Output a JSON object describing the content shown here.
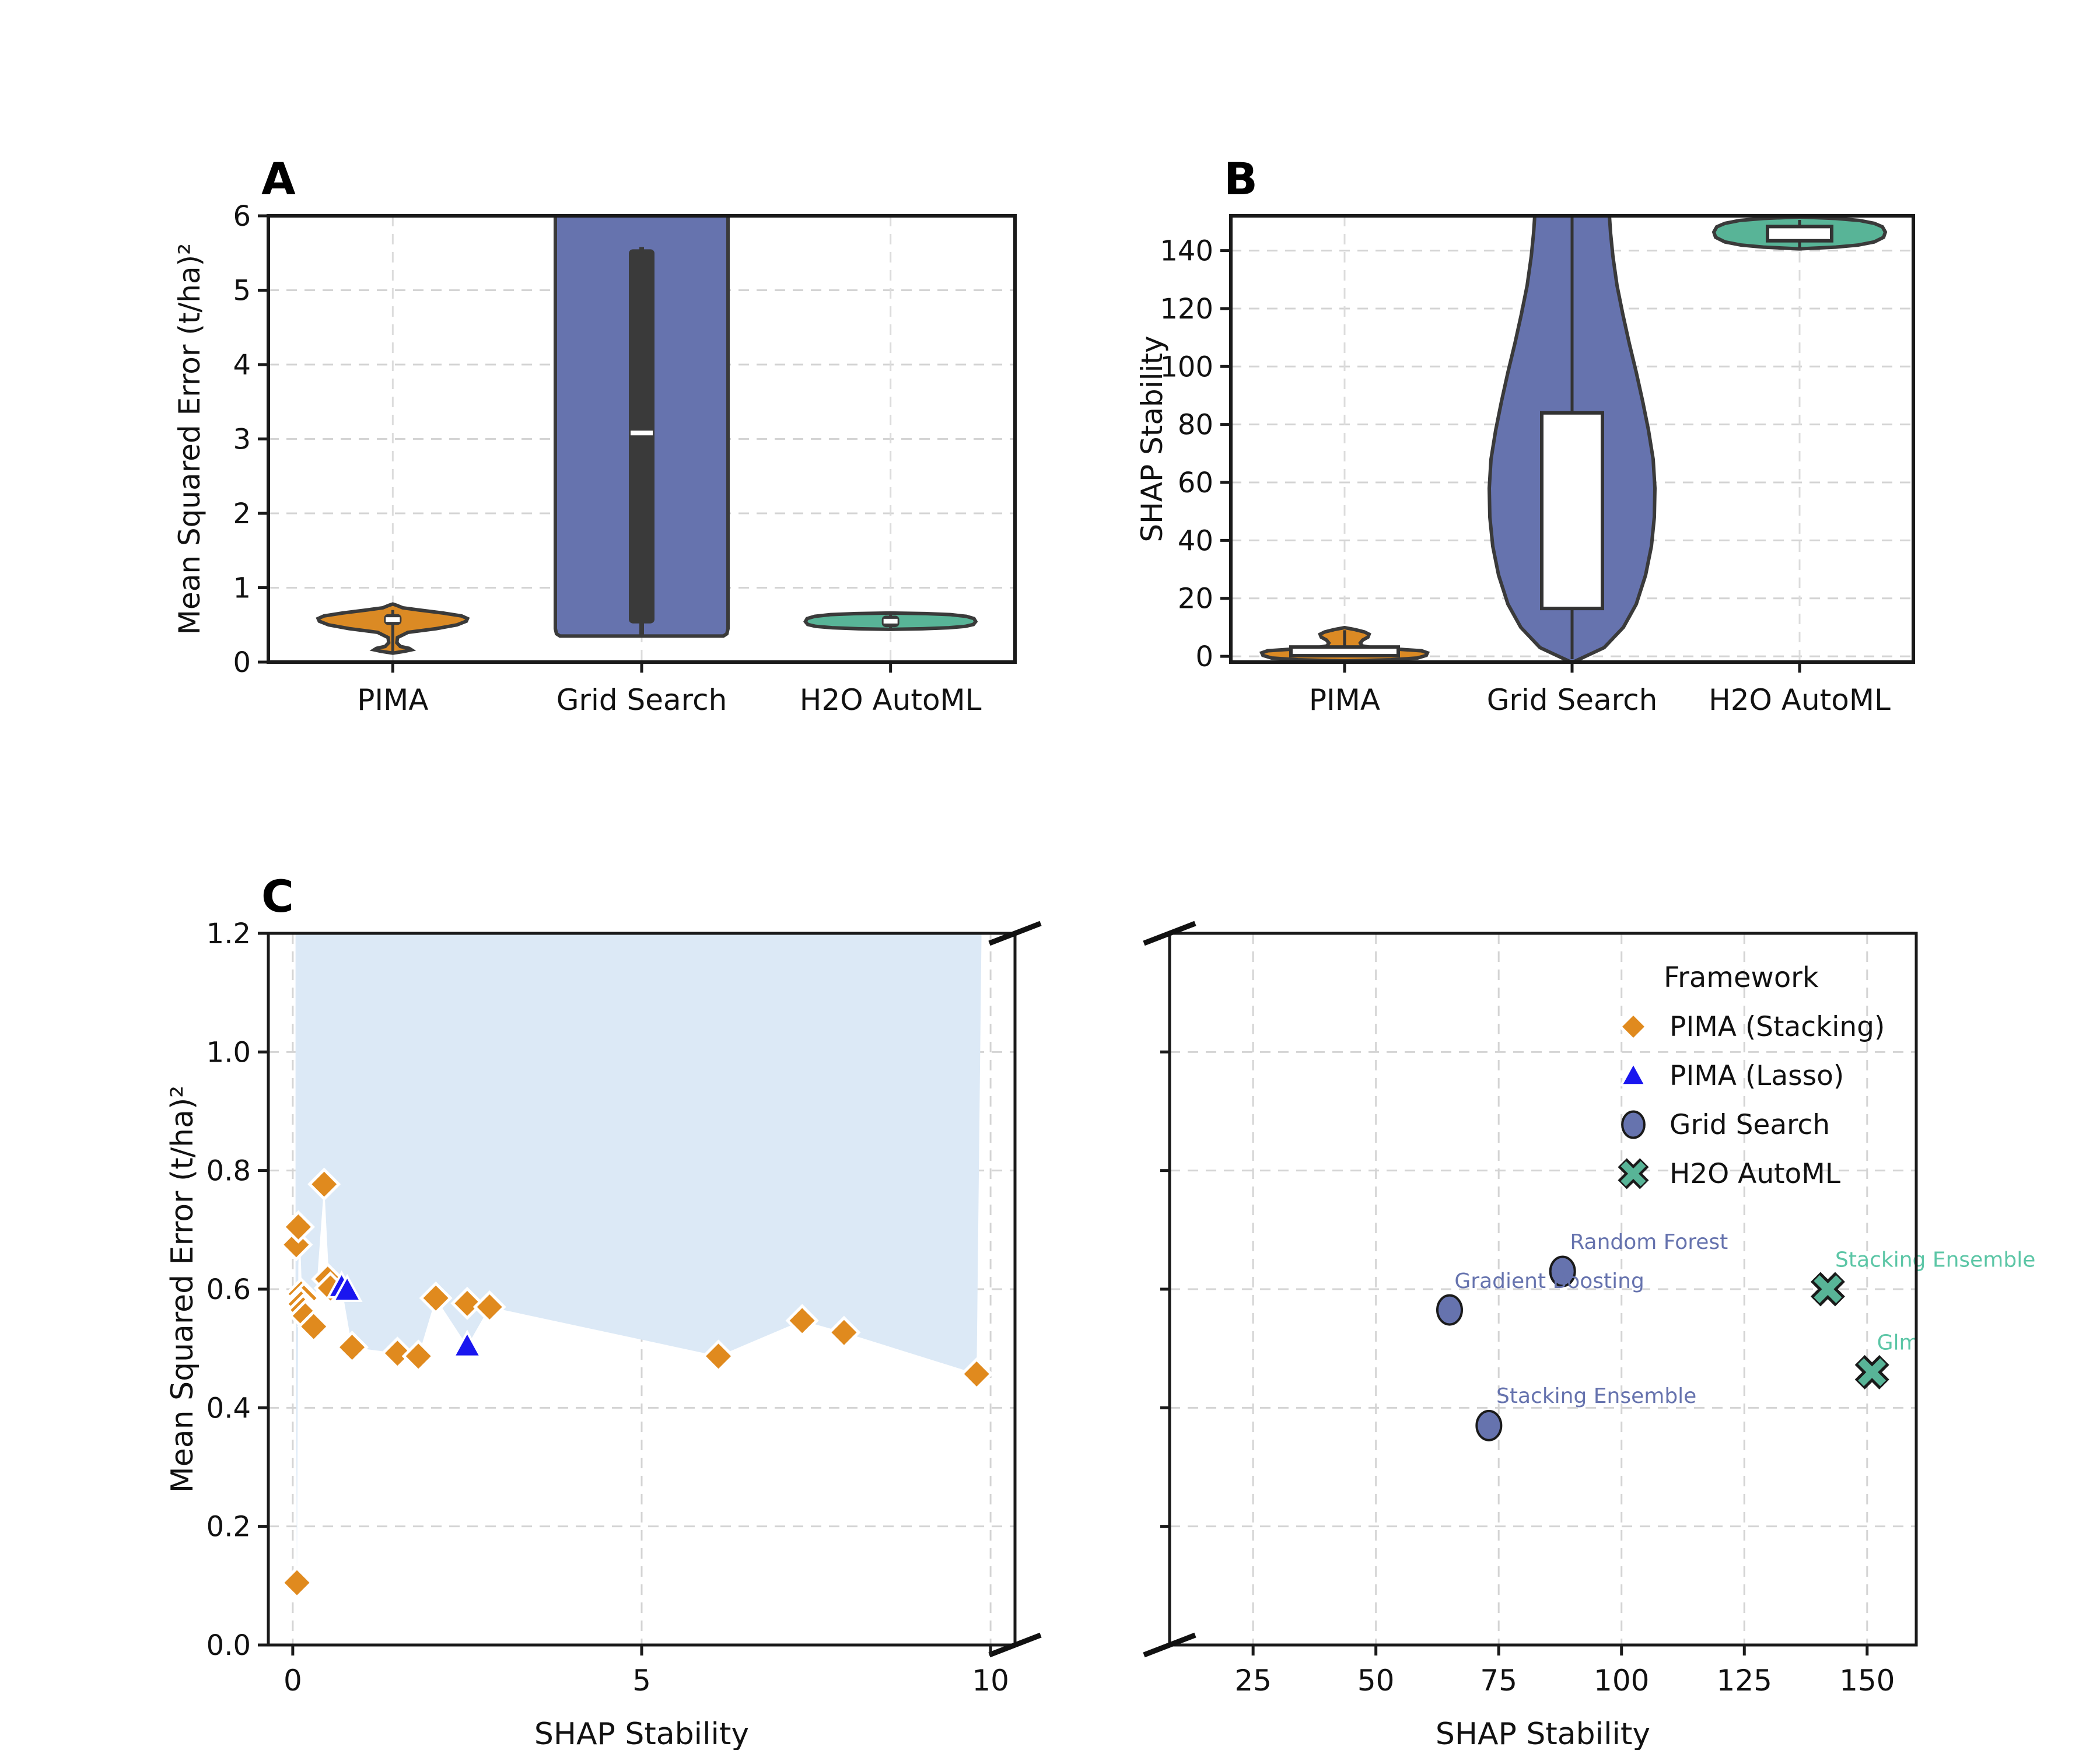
{
  "panels": {
    "a_label": "A",
    "b_label": "B",
    "c_label": "C"
  },
  "colors": {
    "orange": "#DB8A24",
    "purple": "#6673AE",
    "teal": "#58B497",
    "teal_text": "#5CC6A6",
    "blue": "#1A16EF",
    "band": "#DCE9F6",
    "violin_edge": "#3a3a3a",
    "spine": "#1a1a1a",
    "grid": "#d4d4d4",
    "text": "#111111"
  },
  "chart_data": [
    {
      "id": "A",
      "type": "violin",
      "panel_label": "A",
      "ylabel": "Mean Squared Error (t/ha)²",
      "ylim": [
        0,
        6
      ],
      "yticks": [
        0,
        1,
        2,
        3,
        4,
        5,
        6
      ],
      "categories": [
        "PIMA",
        "Grid Search",
        "H2O AutoML"
      ],
      "violins": [
        {
          "key": "pima",
          "color": "#DB8A24",
          "inner": "dark",
          "box_halfwidth": 15,
          "whisker_width": 5,
          "summary": {
            "min": 0.12,
            "max": 0.78,
            "whisker_low": 0.14,
            "q1": 0.5,
            "median": 0.572,
            "q3": 0.645,
            "whisker_high": 0.7
          },
          "profile": [
            [
              0.12,
              0
            ],
            [
              0.145,
              20
            ],
            [
              0.165,
              32
            ],
            [
              0.185,
              28
            ],
            [
              0.21,
              13
            ],
            [
              0.26,
              7
            ],
            [
              0.33,
              8
            ],
            [
              0.4,
              26
            ],
            [
              0.45,
              75
            ],
            [
              0.5,
              110
            ],
            [
              0.55,
              126
            ],
            [
              0.585,
              128
            ],
            [
              0.62,
              118
            ],
            [
              0.66,
              86
            ],
            [
              0.7,
              45
            ],
            [
              0.73,
              17
            ],
            [
              0.765,
              6
            ],
            [
              0.78,
              0
            ]
          ]
        },
        {
          "key": "grid-search",
          "color": "#6673AE",
          "inner": "dark",
          "box_halfwidth": 22,
          "whisker_width": 8,
          "summary": {
            "min": 0.35,
            "max": 6.0,
            "whisker_low": 0.36,
            "q1": 0.52,
            "median": 3.08,
            "q3": 5.55,
            "whisker_high": 5.58
          },
          "profile": [
            [
              0.35,
              140
            ],
            [
              0.38,
              146
            ],
            [
              0.45,
              148
            ],
            [
              1,
              148
            ],
            [
              2,
              148
            ],
            [
              3,
              148
            ],
            [
              4,
              148
            ],
            [
              5,
              148
            ],
            [
              6,
              148
            ]
          ]
        },
        {
          "key": "h2o-automl",
          "color": "#58B497",
          "inner": "dark",
          "box_halfwidth": 15,
          "whisker_width": 5,
          "summary": {
            "min": 0.44,
            "max": 0.66,
            "whisker_low": 0.46,
            "q1": 0.47,
            "median": 0.55,
            "q3": 0.625,
            "whisker_high": 0.64
          },
          "profile": [
            [
              0.44,
              0
            ],
            [
              0.448,
              55
            ],
            [
              0.462,
              100
            ],
            [
              0.48,
              128
            ],
            [
              0.505,
              142
            ],
            [
              0.545,
              146
            ],
            [
              0.585,
              143
            ],
            [
              0.615,
              130
            ],
            [
              0.638,
              103
            ],
            [
              0.652,
              60
            ],
            [
              0.66,
              0
            ]
          ]
        }
      ]
    },
    {
      "id": "B",
      "type": "violin",
      "panel_label": "B",
      "ylabel": "SHAP Stability",
      "ylim": [
        -2,
        152
      ],
      "yticks": [
        0,
        20,
        40,
        60,
        80,
        100,
        120,
        140
      ],
      "categories": [
        "PIMA",
        "Grid Search",
        "H2O AutoML"
      ],
      "violins": [
        {
          "key": "pima",
          "color": "#DB8A24",
          "inner": "white",
          "box_halfwidth": 92,
          "summary": {
            "min": -1.5,
            "max": 10,
            "whisker_low": 0.0,
            "q1": 0.2,
            "median": 1.6,
            "q3": 3.2,
            "whisker_high": 9.0
          },
          "profile": [
            [
              -1.6,
              0
            ],
            [
              -1.2,
              80
            ],
            [
              -0.6,
              125
            ],
            [
              0.3,
              140
            ],
            [
              1.2,
              142
            ],
            [
              1.9,
              132
            ],
            [
              2.4,
              95
            ],
            [
              2.9,
              50
            ],
            [
              3.6,
              30
            ],
            [
              4.6,
              27
            ],
            [
              5.6,
              31
            ],
            [
              6.6,
              40
            ],
            [
              7.6,
              42
            ],
            [
              8.4,
              34
            ],
            [
              9.2,
              18
            ],
            [
              9.9,
              0
            ]
          ]
        },
        {
          "key": "grid-search",
          "color": "#6673AE",
          "inner": "white",
          "box_halfwidth": 52,
          "summary": {
            "min": -1,
            "max": 152,
            "whisker_low": -1,
            "q1": 16.5,
            "median": 50,
            "q3": 84,
            "whisker_high": 152
          },
          "profile": [
            [
              -1.8,
              4
            ],
            [
              3,
              55
            ],
            [
              10,
              88
            ],
            [
              18,
              110
            ],
            [
              28,
              126
            ],
            [
              38,
              136
            ],
            [
              48,
              141
            ],
            [
              58,
              142
            ],
            [
              68,
              139
            ],
            [
              78,
              131
            ],
            [
              88,
              121
            ],
            [
              98,
              110
            ],
            [
              108,
              98
            ],
            [
              118,
              87
            ],
            [
              128,
              77
            ],
            [
              138,
              70
            ],
            [
              146,
              66
            ],
            [
              152,
              64
            ]
          ]
        },
        {
          "key": "h2o-automl",
          "color": "#58B497",
          "inner": "white",
          "box_halfwidth": 55,
          "summary": {
            "min": 140.6,
            "max": 151.6,
            "whisker_low": 141.0,
            "q1": 143.4,
            "median": 146,
            "q3": 148.3,
            "whisker_high": 150.6
          },
          "profile": [
            [
              140.6,
              0
            ],
            [
              141.2,
              62
            ],
            [
              141.9,
              100
            ],
            [
              143,
              128
            ],
            [
              144.6,
              144
            ],
            [
              146.4,
              147
            ],
            [
              148.2,
              142
            ],
            [
              149.4,
              128
            ],
            [
              150.4,
              103
            ],
            [
              151.1,
              62
            ],
            [
              151.6,
              0
            ]
          ]
        }
      ]
    },
    {
      "id": "C",
      "type": "scatter-broken-x",
      "panel_label": "C",
      "xlabel": "SHAP Stability",
      "ylabel": "Mean Squared Error (t/ha)²",
      "left": {
        "xlim": [
          -0.35,
          10.35
        ],
        "xticks": [
          0,
          5,
          10
        ],
        "ylim": [
          0,
          1.2
        ],
        "yticks": [
          0.0,
          0.2,
          0.4,
          0.6,
          0.8,
          1.0,
          1.2
        ],
        "yticklabels": [
          "0.0",
          "0.2",
          "0.4",
          "0.6",
          "0.8",
          "1.0",
          "1.2"
        ]
      },
      "right": {
        "xlim": [
          8,
          160
        ],
        "xticks": [
          25,
          50,
          75,
          100,
          125,
          150
        ],
        "unlabeled_yticks": [
          0.2,
          0.4,
          0.6,
          0.8,
          1.0
        ]
      },
      "band": {
        "color": "#DCE9F6",
        "upper": 1.2,
        "lower_path": [
          [
            0.04,
            1.2
          ],
          [
            0.04,
            0.62
          ],
          [
            0.06,
            0.105
          ],
          [
            0.08,
            0.64
          ],
          [
            0.1,
            0.705
          ],
          [
            0.13,
            0.6
          ],
          [
            0.2,
            0.568
          ],
          [
            0.3,
            0.537
          ],
          [
            0.45,
            0.777
          ],
          [
            0.52,
            0.617
          ],
          [
            0.7,
            0.604
          ],
          [
            0.85,
            0.502
          ],
          [
            1.5,
            0.492
          ],
          [
            1.8,
            0.487
          ],
          [
            2.05,
            0.585
          ],
          [
            2.5,
            0.504
          ],
          [
            2.82,
            0.57
          ],
          [
            6.1,
            0.487
          ],
          [
            7.3,
            0.547
          ],
          [
            7.9,
            0.527
          ],
          [
            9.8,
            0.457
          ],
          [
            9.87,
            1.2
          ]
        ]
      },
      "series": [
        {
          "name": "PIMA (Stacking)",
          "marker": "diamond",
          "color": "#E08A1E",
          "edge": "#ffffff",
          "panel": "left",
          "points": [
            [
              0.06,
              0.105
            ],
            [
              0.05,
              0.675
            ],
            [
              0.08,
              0.705
            ],
            [
              0.12,
              0.592
            ],
            [
              0.16,
              0.585
            ],
            [
              0.12,
              0.575
            ],
            [
              0.15,
              0.565
            ],
            [
              0.18,
              0.555
            ],
            [
              0.3,
              0.537
            ],
            [
              0.45,
              0.777
            ],
            [
              0.5,
              0.617
            ],
            [
              0.54,
              0.602
            ],
            [
              0.85,
              0.502
            ],
            [
              1.5,
              0.492
            ],
            [
              1.8,
              0.487
            ],
            [
              2.05,
              0.585
            ],
            [
              2.5,
              0.576
            ],
            [
              2.82,
              0.57
            ],
            [
              6.1,
              0.487
            ],
            [
              7.3,
              0.547
            ],
            [
              7.9,
              0.527
            ],
            [
              9.8,
              0.457
            ]
          ]
        },
        {
          "name": "PIMA (Lasso)",
          "marker": "triangle",
          "color": "#1A16EF",
          "edge": "#ffffff",
          "panel": "left",
          "points": [
            [
              0.7,
              0.604
            ],
            [
              0.78,
              0.598
            ],
            [
              2.5,
              0.504
            ]
          ]
        },
        {
          "name": "Grid Search",
          "marker": "circle",
          "color": "#6673AE",
          "edge": "#1a1a1a",
          "panel": "right",
          "points": [
            [
              65,
              0.565
            ],
            [
              88,
              0.63
            ],
            [
              73,
              0.37
            ]
          ],
          "point_labels": [
            "Gradient Boosting",
            "Random Forest",
            "Stacking Ensemble"
          ]
        },
        {
          "name": "H2O AutoML",
          "marker": "x",
          "color": "#58B497",
          "edge": "#1a1a1a",
          "panel": "right",
          "points": [
            [
              142,
              0.6
            ],
            [
              151,
              0.46
            ]
          ],
          "point_labels": [
            "Stacking Ensemble",
            "Glm"
          ]
        }
      ],
      "annotations": [
        {
          "text": "Random Forest",
          "x": 89.5,
          "y": 0.668,
          "color": "#6673AE"
        },
        {
          "text": "Gradient Boosting",
          "x": 66.0,
          "y": 0.602,
          "color": "#6673AE"
        },
        {
          "text": "Stacking Ensemble",
          "x": 74.5,
          "y": 0.408,
          "color": "#6673AE"
        },
        {
          "text": "Stacking Ensemble",
          "x": 143.5,
          "y": 0.638,
          "color": "#5CC6A6"
        },
        {
          "text": "Glm",
          "x": 152.0,
          "y": 0.498,
          "color": "#5CC6A6"
        }
      ],
      "legend": {
        "title": "Framework",
        "entries": [
          {
            "label": "PIMA (Stacking)",
            "marker": "diamond",
            "color": "#E08A1E",
            "edge": "#ffffff"
          },
          {
            "label": "PIMA (Lasso)",
            "marker": "triangle",
            "color": "#1A16EF",
            "edge": "#ffffff"
          },
          {
            "label": "Grid Search",
            "marker": "circle",
            "color": "#6673AE",
            "edge": "#1a1a1a"
          },
          {
            "label": "H2O AutoML",
            "marker": "x",
            "color": "#58B497",
            "edge": "#1a1a1a"
          }
        ]
      }
    }
  ]
}
